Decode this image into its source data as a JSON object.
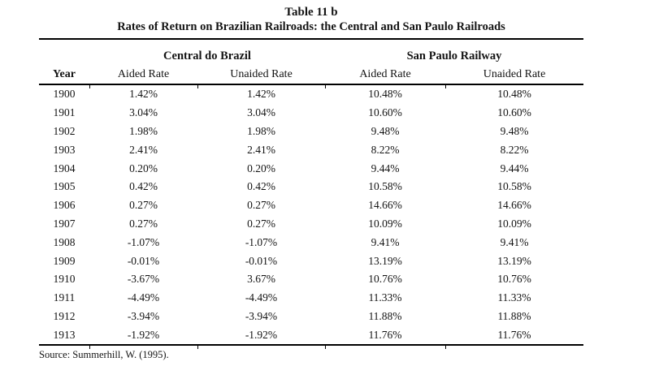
{
  "page": {
    "background_color": "#ffffff",
    "ink_color": "#141414",
    "rule_color": "#000000"
  },
  "table": {
    "title": "Table 11 b",
    "subtitle": "Rates of Return on Brazilian Railroads: the Central and San Paulo Railroads",
    "group_headers": [
      "Central do Brazil",
      "San Paulo Railway"
    ],
    "columns": [
      "Year",
      "Aided Rate",
      "Unaided Rate",
      "Aided Rate",
      "Unaided Rate"
    ],
    "rows": [
      [
        "1900",
        "1.42%",
        "1.42%",
        "10.48%",
        "10.48%"
      ],
      [
        "1901",
        "3.04%",
        "3.04%",
        "10.60%",
        "10.60%"
      ],
      [
        "1902",
        "1.98%",
        "1.98%",
        "9.48%",
        "9.48%"
      ],
      [
        "1903",
        "2.41%",
        "2.41%",
        "8.22%",
        "8.22%"
      ],
      [
        "1904",
        "0.20%",
        "0.20%",
        "9.44%",
        "9.44%"
      ],
      [
        "1905",
        "0.42%",
        "0.42%",
        "10.58%",
        "10.58%"
      ],
      [
        "1906",
        "0.27%",
        "0.27%",
        "14.66%",
        "14.66%"
      ],
      [
        "1907",
        "0.27%",
        "0.27%",
        "10.09%",
        "10.09%"
      ],
      [
        "1908",
        "-1.07%",
        "-1.07%",
        "9.41%",
        "9.41%"
      ],
      [
        "1909",
        "-0.01%",
        "-0.01%",
        "13.19%",
        "13.19%"
      ],
      [
        "1910",
        "-3.67%",
        "3.67%",
        "10.76%",
        "10.76%"
      ],
      [
        "1911",
        "-4.49%",
        "-4.49%",
        "11.33%",
        "11.33%"
      ],
      [
        "1912",
        "-3.94%",
        "-3.94%",
        "11.88%",
        "11.88%"
      ],
      [
        "1913",
        "-1.92%",
        "-1.92%",
        "11.76%",
        "11.76%"
      ]
    ],
    "source": "Source: Summerhill, W. (1995)."
  }
}
